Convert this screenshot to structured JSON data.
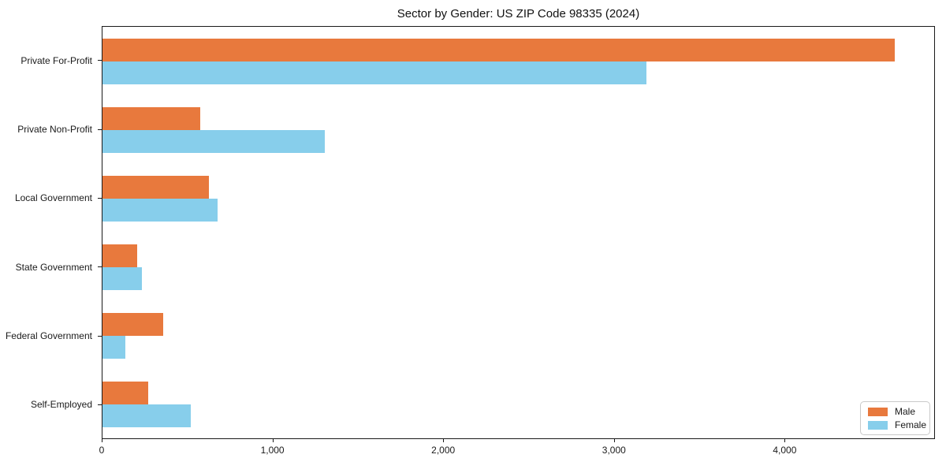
{
  "title": "Sector by Gender: US ZIP Code 98335 (2024)",
  "chart_data": {
    "type": "bar",
    "orientation": "horizontal",
    "title": "Sector by Gender: US ZIP Code 98335 (2024)",
    "categories": [
      "Private For-Profit",
      "Private Non-Profit",
      "Local Government",
      "State Government",
      "Federal Government",
      "Self-Employed"
    ],
    "series": [
      {
        "name": "Male",
        "color": "#E8793D",
        "values": [
          4650,
          575,
          625,
          205,
          355,
          270
        ]
      },
      {
        "name": "Female",
        "color": "#87CEEB",
        "values": [
          3190,
          1305,
          675,
          230,
          135,
          520
        ]
      }
    ],
    "xlabel": "",
    "ylabel": "",
    "xlim": [
      0,
      4880
    ],
    "x_ticks": [
      0,
      1000,
      2000,
      3000,
      4000
    ],
    "x_tick_labels": [
      "0",
      "1,000",
      "2,000",
      "3,000",
      "4,000"
    ],
    "grid": false,
    "legend_position": "lower-right"
  }
}
